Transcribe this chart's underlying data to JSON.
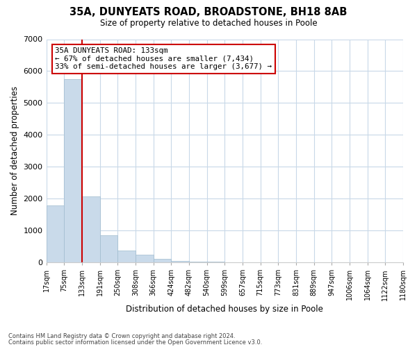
{
  "title": "35A, DUNYEATS ROAD, BROADSTONE, BH18 8AB",
  "subtitle": "Size of property relative to detached houses in Poole",
  "xlabel": "Distribution of detached houses by size in Poole",
  "ylabel": "Number of detached properties",
  "bin_labels": [
    "17sqm",
    "75sqm",
    "133sqm",
    "191sqm",
    "250sqm",
    "308sqm",
    "366sqm",
    "424sqm",
    "482sqm",
    "540sqm",
    "599sqm",
    "657sqm",
    "715sqm",
    "773sqm",
    "831sqm",
    "889sqm",
    "947sqm",
    "1006sqm",
    "1064sqm",
    "1122sqm",
    "1180sqm"
  ],
  "bar_heights": [
    1780,
    5750,
    2060,
    840,
    380,
    230,
    100,
    55,
    30,
    15,
    10,
    5,
    3,
    0,
    0,
    0,
    0,
    0,
    0,
    0
  ],
  "bar_color": "#c9daea",
  "bar_edge_color": "#a0bcce",
  "vline_index": 2,
  "vline_color": "#cc0000",
  "ylim": [
    0,
    7000
  ],
  "yticks": [
    0,
    1000,
    2000,
    3000,
    4000,
    5000,
    6000,
    7000
  ],
  "annotation_text": "35A DUNYEATS ROAD: 133sqm\n← 67% of detached houses are smaller (7,434)\n33% of semi-detached houses are larger (3,677) →",
  "annotation_box_color": "#ffffff",
  "annotation_border_color": "#cc0000",
  "footer_line1": "Contains HM Land Registry data © Crown copyright and database right 2024.",
  "footer_line2": "Contains public sector information licensed under the Open Government Licence v3.0.",
  "background_color": "#ffffff",
  "grid_color": "#c8d8e8"
}
